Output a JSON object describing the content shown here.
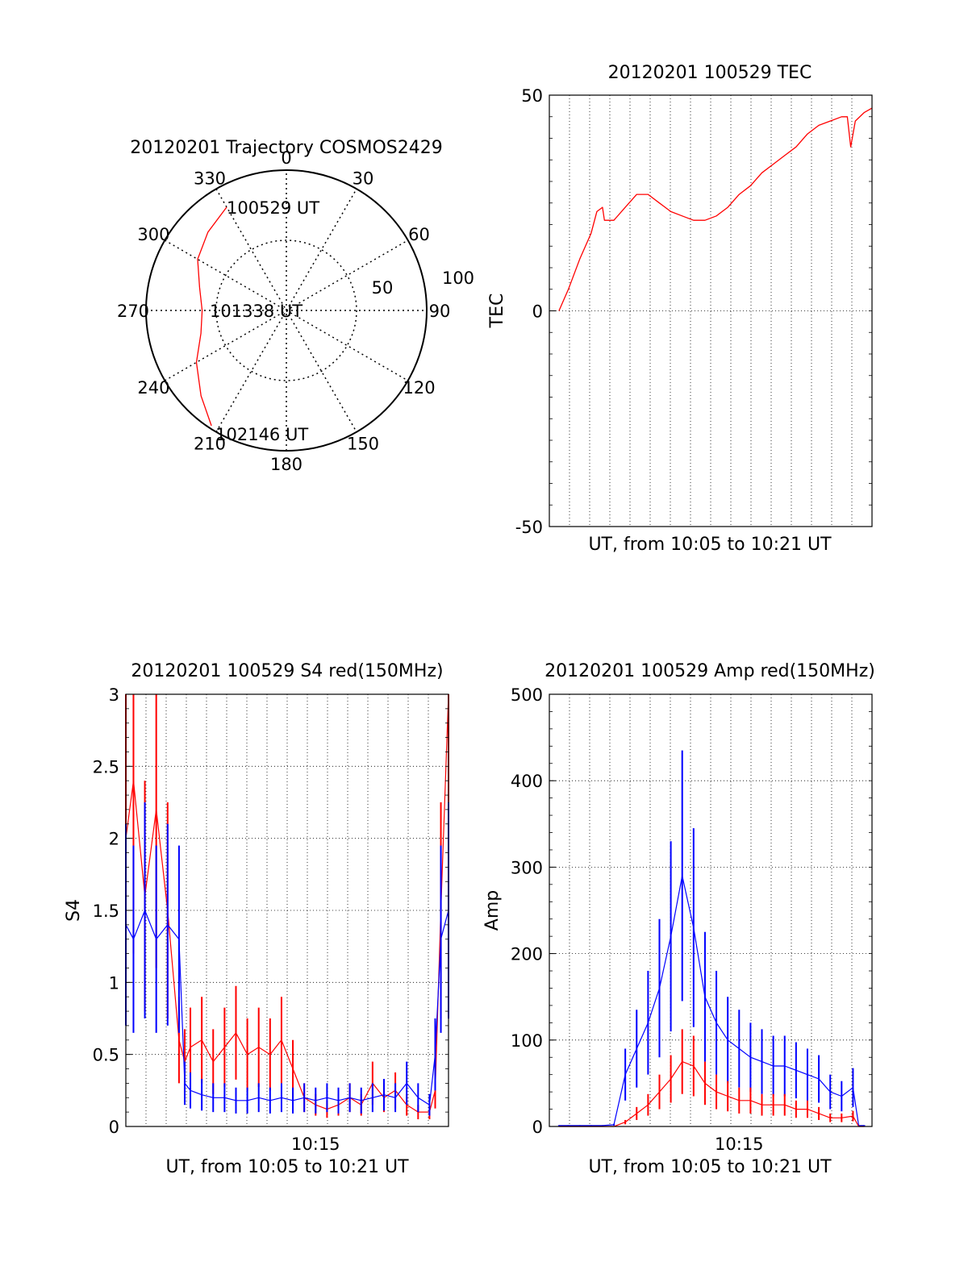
{
  "chart_data": [
    {
      "type": "polar",
      "title": "20120201 Trajectory COSMOS2429",
      "angle_labels": [
        "0",
        "30",
        "60",
        "90",
        "120",
        "150",
        "180",
        "210",
        "240",
        "270",
        "300",
        "330"
      ],
      "radial_labels": [
        "50",
        "100"
      ],
      "radial_range": [
        0,
        100
      ],
      "grid": true,
      "annotations": [
        {
          "text": "100529 UT",
          "azimuth": 330,
          "radius": 85
        },
        {
          "text": "101338 UT",
          "azimuth": 0,
          "radius": 0
        },
        {
          "text": "102146 UT",
          "azimuth": 213,
          "radius": 98
        }
      ],
      "series": [
        {
          "color": "#ff0000",
          "azimuth": [
            330,
            315,
            300,
            285,
            270,
            255,
            240,
            225,
            213
          ],
          "radius": [
            85,
            79,
            73,
            64,
            60,
            63,
            74,
            86,
            98
          ]
        }
      ]
    },
    {
      "type": "line",
      "title": "20120201 100529 TEC",
      "xlabel": "UT, from 10:05 to 10:21 UT",
      "ylabel": "TEC",
      "xlim": [
        10.0833,
        10.3667
      ],
      "ylim": [
        -50,
        50
      ],
      "yticks": [
        -50,
        0,
        50
      ],
      "grid": true,
      "series": [
        {
          "color": "#ff0000",
          "x": [
            10.0917,
            10.1,
            10.11,
            10.12,
            10.125,
            10.13,
            10.1317,
            10.14,
            10.15,
            10.16,
            10.17,
            10.18,
            10.19,
            10.2,
            10.21,
            10.22,
            10.23,
            10.24,
            10.25,
            10.26,
            10.27,
            10.28,
            10.29,
            10.3,
            10.31,
            10.32,
            10.33,
            10.34,
            10.345,
            10.348,
            10.352,
            10.36,
            10.3667
          ],
          "y": [
            0,
            5,
            12,
            18,
            23,
            24,
            21,
            21,
            24,
            27,
            27,
            25,
            23,
            22,
            21,
            21,
            22,
            24,
            27,
            29,
            32,
            34,
            36,
            38,
            41,
            43,
            44,
            45,
            45,
            38,
            44,
            46,
            47
          ]
        }
      ]
    },
    {
      "type": "line",
      "title": "20120201 100529 S4 red(150MHz)",
      "xlabel": "UT, from 10:05 to 10:21 UT",
      "ylabel": "S4",
      "xlim": [
        10.0833,
        10.3667
      ],
      "ylim": [
        0,
        3
      ],
      "yticks": [
        0,
        0.5,
        1,
        1.5,
        2,
        2.5,
        3
      ],
      "xticks": [
        "10:15"
      ],
      "grid": true,
      "series": [
        {
          "color": "#ff0000",
          "x": [
            10.0833,
            10.09,
            10.1,
            10.11,
            10.12,
            10.13,
            10.135,
            10.14,
            10.15,
            10.16,
            10.17,
            10.18,
            10.19,
            10.2,
            10.21,
            10.22,
            10.23,
            10.24,
            10.25,
            10.26,
            10.27,
            10.28,
            10.29,
            10.3,
            10.31,
            10.32,
            10.33,
            10.34,
            10.35,
            10.355,
            10.36,
            10.3667
          ],
          "y": [
            2.0,
            2.4,
            1.6,
            2.2,
            1.5,
            0.6,
            0.45,
            0.55,
            0.6,
            0.45,
            0.55,
            0.65,
            0.5,
            0.55,
            0.5,
            0.6,
            0.4,
            0.2,
            0.15,
            0.12,
            0.15,
            0.2,
            0.15,
            0.3,
            0.2,
            0.25,
            0.15,
            0.1,
            0.1,
            0.25,
            1.5,
            3.0
          ]
        },
        {
          "color": "#0000ff",
          "x": [
            10.0833,
            10.09,
            10.1,
            10.11,
            10.12,
            10.13,
            10.135,
            10.14,
            10.15,
            10.16,
            10.17,
            10.18,
            10.19,
            10.2,
            10.21,
            10.22,
            10.23,
            10.24,
            10.25,
            10.26,
            10.27,
            10.28,
            10.29,
            10.3,
            10.31,
            10.32,
            10.33,
            10.34,
            10.35,
            10.355,
            10.36,
            10.3667
          ],
          "y": [
            1.4,
            1.3,
            1.5,
            1.3,
            1.4,
            1.3,
            0.3,
            0.25,
            0.22,
            0.2,
            0.2,
            0.18,
            0.18,
            0.2,
            0.18,
            0.2,
            0.18,
            0.2,
            0.18,
            0.2,
            0.18,
            0.2,
            0.18,
            0.2,
            0.22,
            0.2,
            0.3,
            0.2,
            0.15,
            0.5,
            1.3,
            1.5
          ]
        }
      ]
    },
    {
      "type": "line",
      "title": "20120201 100529 Amp red(150MHz)",
      "xlabel": "UT, from 10:05 to 10:21 UT",
      "ylabel": "Amp",
      "xlim": [
        10.0833,
        10.3667
      ],
      "ylim": [
        0,
        500
      ],
      "yticks": [
        0,
        100,
        200,
        300,
        400,
        500
      ],
      "xticks": [
        "10:15"
      ],
      "grid": true,
      "series": [
        {
          "color": "#0000ff",
          "x": [
            10.0917,
            10.1,
            10.11,
            10.12,
            10.13,
            10.14,
            10.15,
            10.16,
            10.17,
            10.18,
            10.19,
            10.2,
            10.21,
            10.22,
            10.23,
            10.24,
            10.25,
            10.26,
            10.27,
            10.28,
            10.29,
            10.3,
            10.31,
            10.32,
            10.33,
            10.34,
            10.35,
            10.355,
            10.36
          ],
          "y": [
            1,
            1,
            1,
            1,
            1,
            2,
            60,
            90,
            120,
            160,
            220,
            290,
            230,
            150,
            120,
            100,
            90,
            80,
            75,
            70,
            70,
            65,
            60,
            55,
            40,
            35,
            45,
            1,
            1
          ]
        },
        {
          "color": "#ff0000",
          "x": [
            10.0917,
            10.1,
            10.11,
            10.12,
            10.13,
            10.14,
            10.15,
            10.16,
            10.17,
            10.18,
            10.19,
            10.2,
            10.21,
            10.22,
            10.23,
            10.24,
            10.25,
            10.26,
            10.27,
            10.28,
            10.29,
            10.3,
            10.31,
            10.32,
            10.33,
            10.34,
            10.35,
            10.355,
            10.36
          ],
          "y": [
            0,
            0,
            0,
            0,
            0,
            0,
            5,
            15,
            25,
            40,
            55,
            75,
            70,
            50,
            40,
            35,
            30,
            30,
            25,
            25,
            25,
            20,
            20,
            15,
            10,
            10,
            12,
            0,
            0
          ]
        }
      ]
    }
  ]
}
